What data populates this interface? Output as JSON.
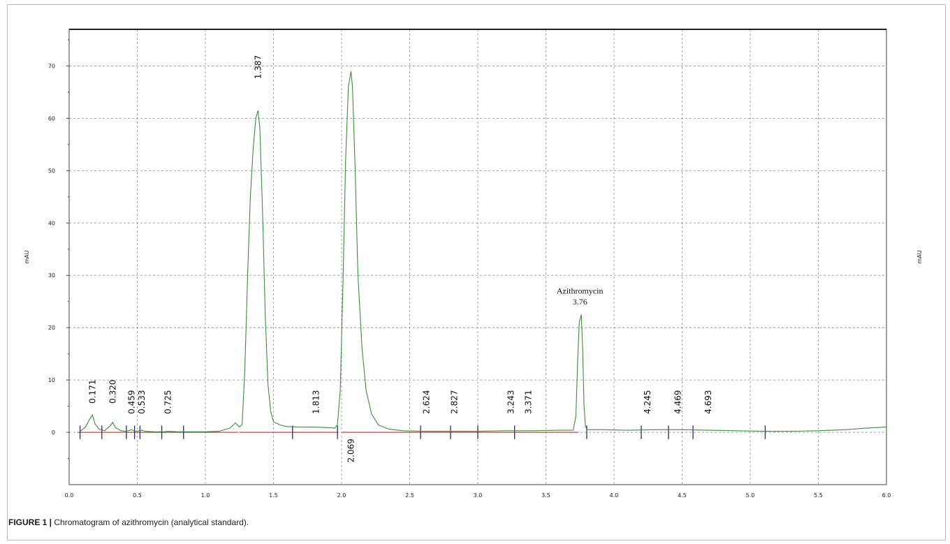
{
  "caption": {
    "lead": "FIGURE 1 |",
    "text": " Chromatogram of azithromycin (analytical standard)."
  },
  "chart_data": {
    "type": "line",
    "title": "",
    "xlabel": "",
    "ylabel_left": "mAU",
    "ylabel_right": "mAU",
    "xlim": [
      0,
      6.0
    ],
    "ylim": [
      -10,
      77
    ],
    "grid": true,
    "x_ticks": [
      "0.0",
      "0.5",
      "1.0",
      "1.5",
      "2.0",
      "2.5",
      "3.0",
      "3.5",
      "4.0",
      "4.5",
      "5.0",
      "5.5",
      "6.0"
    ],
    "y_ticks": [
      "0",
      "10",
      "20",
      "30",
      "40",
      "50",
      "60",
      "70"
    ],
    "colors": {
      "signal": "#3c8d3c",
      "baseline": "#b5322e",
      "grid": "#8c8c8c",
      "marker": "#2a2a6a"
    },
    "series": [
      {
        "x": [
          0.08,
          0.12,
          0.15,
          0.171,
          0.19,
          0.22,
          0.26,
          0.3,
          0.32,
          0.34,
          0.38,
          0.42,
          0.459,
          0.48,
          0.52,
          0.533,
          0.56,
          0.62,
          0.7,
          0.725,
          0.8,
          0.9,
          1.0,
          1.1,
          1.18,
          1.22,
          1.25,
          1.27,
          1.29,
          1.31,
          1.33,
          1.35,
          1.37,
          1.387,
          1.4,
          1.42,
          1.44,
          1.46,
          1.48,
          1.5,
          1.55,
          1.6,
          1.7,
          1.8,
          1.9,
          1.95,
          1.97,
          1.99,
          2.01,
          2.03,
          2.05,
          2.069,
          2.08,
          2.1,
          2.12,
          2.15,
          2.18,
          2.22,
          2.27,
          2.35,
          2.45,
          2.6,
          2.8,
          3.0,
          3.2,
          3.4,
          3.6,
          3.7,
          3.72,
          3.735,
          3.745,
          3.76,
          3.77,
          3.78,
          3.79,
          3.8,
          3.9,
          4.1,
          4.3,
          4.5,
          4.7,
          4.9,
          5.1,
          5.3,
          5.5,
          5.7,
          5.85,
          6.0
        ],
        "y": [
          0.2,
          1.0,
          2.5,
          3.3,
          1.6,
          0.6,
          0.3,
          1.2,
          1.9,
          0.9,
          0.3,
          0.2,
          0.5,
          0.2,
          0.3,
          0.4,
          0.2,
          0.1,
          0.1,
          0.2,
          0.1,
          0.1,
          0.1,
          0.2,
          0.8,
          1.8,
          1.0,
          1.5,
          12,
          30,
          45,
          54,
          60,
          61.5,
          58,
          42,
          22,
          9,
          4,
          2,
          1.4,
          1.1,
          1.0,
          1.0,
          0.9,
          0.8,
          1.5,
          8,
          28,
          52,
          66,
          69,
          66,
          50,
          30,
          16,
          8,
          3.5,
          1.4,
          0.6,
          0.3,
          0.2,
          0.2,
          0.2,
          0.3,
          0.3,
          0.4,
          0.4,
          3,
          15,
          21,
          22.5,
          16,
          5,
          1.2,
          0.5,
          0.5,
          0.4,
          0.5,
          0.5,
          0.4,
          0.3,
          0.2,
          0.2,
          0.3,
          0.5,
          0.8,
          1.0
        ]
      }
    ],
    "peak_labels": [
      {
        "label": "0.171",
        "x": 0.171,
        "y": 5.5,
        "pos": "above"
      },
      {
        "label": "0.320",
        "x": 0.32,
        "y": 5.5,
        "pos": "above"
      },
      {
        "label": "0.459",
        "x": 0.459,
        "y": 3.5,
        "pos": "above"
      },
      {
        "label": "0.533",
        "x": 0.533,
        "y": 3.5,
        "pos": "above"
      },
      {
        "label": "0.725",
        "x": 0.725,
        "y": 3.5,
        "pos": "above"
      },
      {
        "label": "1.387",
        "x": 1.387,
        "y": 67.5,
        "pos": "above"
      },
      {
        "label": "1.813",
        "x": 1.813,
        "y": 3.5,
        "pos": "above"
      },
      {
        "label": "2.069",
        "x": 2.069,
        "y": -1.2,
        "pos": "below"
      },
      {
        "label": "2.624",
        "x": 2.624,
        "y": 3.5,
        "pos": "above"
      },
      {
        "label": "2.827",
        "x": 2.827,
        "y": 3.5,
        "pos": "above"
      },
      {
        "label": "3.243",
        "x": 3.243,
        "y": 3.5,
        "pos": "above"
      },
      {
        "label": "3.371",
        "x": 3.371,
        "y": 3.5,
        "pos": "above"
      },
      {
        "label": "4.245",
        "x": 4.245,
        "y": 3.5,
        "pos": "above"
      },
      {
        "label": "4.469",
        "x": 4.469,
        "y": 3.5,
        "pos": "above"
      },
      {
        "label": "4.693",
        "x": 4.693,
        "y": 3.5,
        "pos": "above"
      }
    ],
    "annotation": {
      "name": "Azithromycin",
      "value": "3.76",
      "x": 3.76
    },
    "integration_markers": [
      0.08,
      0.24,
      0.42,
      0.48,
      0.52,
      0.68,
      0.84,
      1.64,
      1.97,
      2.58,
      2.8,
      3.0,
      3.27,
      3.8,
      4.2,
      4.4,
      4.58,
      5.11
    ],
    "baseline_segments": [
      [
        0.06,
        1.24
      ],
      [
        1.25,
        1.97
      ],
      [
        2.0,
        3.74
      ]
    ]
  }
}
